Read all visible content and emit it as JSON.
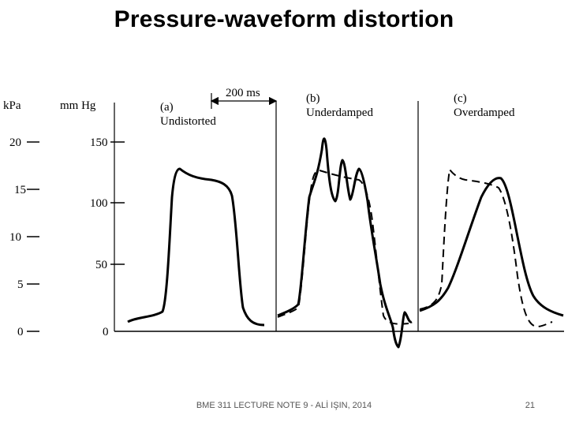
{
  "slide": {
    "title": "Pressure-waveform distortion",
    "footer": "BME 311 LECTURE NOTE 9 - ALİ IŞIN, 2014",
    "page_number": "21"
  },
  "figure": {
    "kpa_axis": {
      "unit": "kPa",
      "ticks": [
        "20",
        "15",
        "10",
        "5",
        "0"
      ]
    },
    "mmhg_axis": {
      "unit": "mm Hg",
      "ticks": [
        "150",
        "100",
        "50",
        "0"
      ]
    },
    "time_scale_label": "200 ms",
    "panels": [
      {
        "tag": "(a)",
        "title": "Undistorted"
      },
      {
        "tag": "(b)",
        "title": "Underdamped"
      },
      {
        "tag": "(c)",
        "title": "Overdamped"
      }
    ]
  }
}
